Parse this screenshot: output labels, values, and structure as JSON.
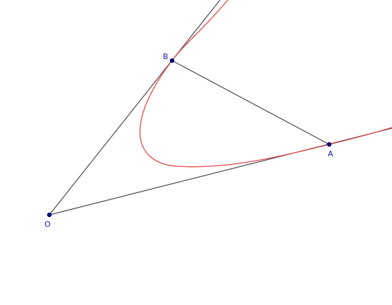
{
  "points": {
    "O": {
      "label": "O"
    },
    "A": {
      "label": "A"
    },
    "B": {
      "label": "B"
    }
  },
  "colors": {
    "line": "#4a4a4a",
    "curve": "#e0484a",
    "point": "#00007a",
    "label": "#1a1aa6"
  }
}
